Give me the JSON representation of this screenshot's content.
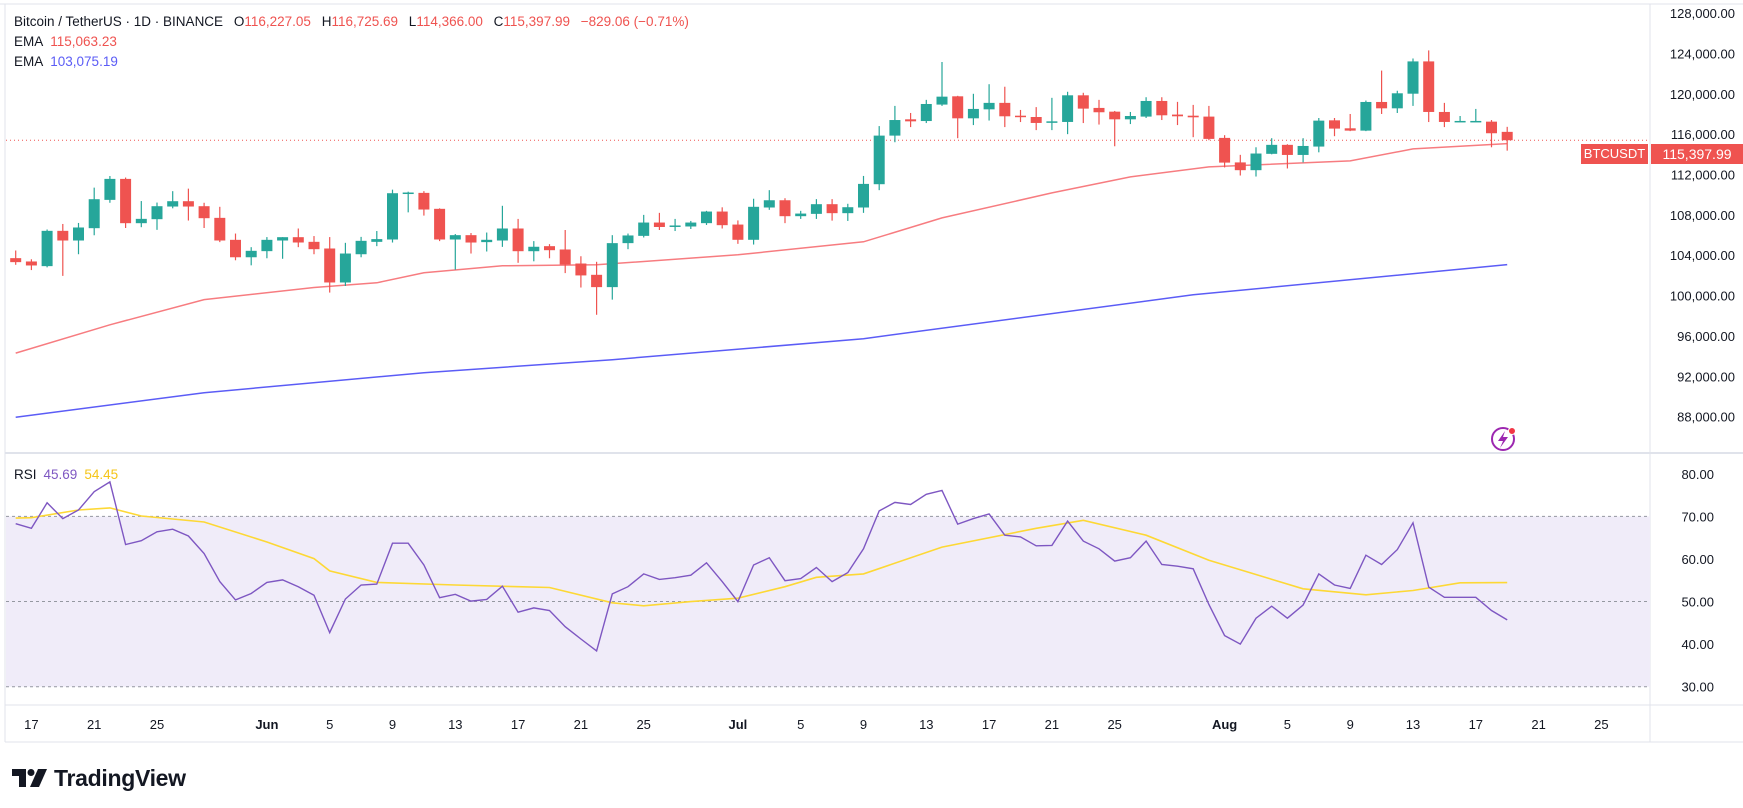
{
  "header": {
    "symbol": "Bitcoin / TetherUS · 1D · BINANCE",
    "o_label": "O",
    "o": "116,227.05",
    "h_label": "H",
    "h": "116,725.69",
    "l_label": "L",
    "l": "114,366.00",
    "c_label": "C",
    "c": "115,397.99",
    "change": "−829.06 (−0.71%)"
  },
  "indicators": [
    {
      "name": "EMA",
      "value": "115,063.23",
      "color": "#f77c80"
    },
    {
      "name": "EMA",
      "value": "103,075.19",
      "color": "#5b5cf6"
    }
  ],
  "rsi_legend": {
    "name": "RSI",
    "value": "45.69",
    "ma_value": "54.45"
  },
  "price_label": {
    "symbol": "BTCUSDT",
    "value": "115,397.99"
  },
  "branding": "TradingView",
  "colors": {
    "up": "#26a69a",
    "down": "#ef5350",
    "ema_fast": "#f77c80",
    "ema_slow": "#5b5cf6",
    "rsi": "#7e57c2",
    "rsi_ma": "#fdd835",
    "rsi_band": "#f0ecf9",
    "alert_icon": "#9c27b0"
  },
  "alert_icon": "lightning-icon",
  "chart_data": {
    "type": "candlestick",
    "ylim": [
      84500,
      128800
    ],
    "grid": false,
    "y_ticks": [
      "128,000.00",
      "124,000.00",
      "120,000.00",
      "116,000.00",
      "112,000.00",
      "108,000.00",
      "104,000.00",
      "100,000.00",
      "96,000.00",
      "92,000.00",
      "88,000.00"
    ],
    "x_ticks": [
      {
        "label": "17",
        "date": "May 17"
      },
      {
        "label": "21",
        "date": "May 21"
      },
      {
        "label": "25",
        "date": "May 25"
      },
      {
        "label": "Jun",
        "date": "Jun 1"
      },
      {
        "label": "5",
        "date": "Jun 5"
      },
      {
        "label": "9",
        "date": "Jun 9"
      },
      {
        "label": "13",
        "date": "Jun 13"
      },
      {
        "label": "17",
        "date": "Jun 17"
      },
      {
        "label": "21",
        "date": "Jun 21"
      },
      {
        "label": "25",
        "date": "Jun 25"
      },
      {
        "label": "Jul",
        "date": "Jul 1"
      },
      {
        "label": "5",
        "date": "Jul 5"
      },
      {
        "label": "9",
        "date": "Jul 9"
      },
      {
        "label": "13",
        "date": "Jul 13"
      },
      {
        "label": "17",
        "date": "Jul 17"
      },
      {
        "label": "21",
        "date": "Jul 21"
      },
      {
        "label": "25",
        "date": "Jul 25"
      },
      {
        "label": "Aug",
        "date": "Aug 1"
      },
      {
        "label": "5",
        "date": "Aug 5"
      },
      {
        "label": "9",
        "date": "Aug 9"
      },
      {
        "label": "13",
        "date": "Aug 13"
      },
      {
        "label": "17",
        "date": "Aug 17"
      },
      {
        "label": "21",
        "date": "Aug 21"
      },
      {
        "label": "25",
        "date": "Aug 25"
      }
    ],
    "candles_columns": [
      "date",
      "open",
      "high",
      "low",
      "close"
    ],
    "candles": [
      [
        "May 16",
        103712,
        104471,
        103052,
        103316
      ],
      [
        "May 17",
        103382,
        103600,
        102530,
        102986
      ],
      [
        "May 18",
        102920,
        106550,
        102800,
        106418
      ],
      [
        "May 19",
        106418,
        107100,
        101954,
        105460
      ],
      [
        "May 20",
        105460,
        107200,
        104100,
        106750
      ],
      [
        "May 21",
        106682,
        110700,
        105980,
        109553
      ],
      [
        "May 22",
        109487,
        111850,
        109200,
        111566
      ],
      [
        "May 23",
        111566,
        111700,
        106700,
        107177
      ],
      [
        "May 24",
        107177,
        109370,
        106780,
        107606
      ],
      [
        "May 25",
        107573,
        109220,
        106517,
        108860
      ],
      [
        "May 26",
        108827,
        110350,
        108650,
        109355
      ],
      [
        "May 27",
        109355,
        110600,
        107440,
        108827
      ],
      [
        "May 28",
        108860,
        109200,
        106700,
        107672
      ],
      [
        "May 29",
        107705,
        108800,
        105300,
        105460
      ],
      [
        "May 30",
        105526,
        106150,
        103500,
        103800
      ],
      [
        "May 31",
        103800,
        104800,
        103000,
        104438
      ],
      [
        "Jun 1",
        104405,
        105800,
        103700,
        105526
      ],
      [
        "Jun 2",
        105460,
        105790,
        103650,
        105790
      ],
      [
        "Jun 3",
        105790,
        106650,
        104800,
        105262
      ],
      [
        "Jun 4",
        105328,
        105900,
        104100,
        104600
      ],
      [
        "Jun 5",
        104668,
        105800,
        100300,
        101300
      ],
      [
        "Jun 6",
        101300,
        105230,
        100950,
        104170
      ],
      [
        "Jun 7",
        104100,
        105820,
        103800,
        105427
      ],
      [
        "Jun 8",
        105327,
        106400,
        104900,
        105600
      ],
      [
        "Jun 9",
        105560,
        110500,
        105260,
        110147
      ],
      [
        "Jun 10",
        110080,
        110300,
        108250,
        110215
      ],
      [
        "Jun 11",
        110180,
        110350,
        107930,
        108530
      ],
      [
        "Jun 12",
        108600,
        108650,
        105400,
        105560
      ],
      [
        "Jun 13",
        105560,
        106100,
        102570,
        105990
      ],
      [
        "Jun 14",
        105990,
        106200,
        104170,
        105260
      ],
      [
        "Jun 15",
        105300,
        106250,
        104370,
        105530
      ],
      [
        "Jun 16",
        105460,
        108900,
        104830,
        106650
      ],
      [
        "Jun 17",
        106650,
        107600,
        103250,
        104400
      ],
      [
        "Jun 18",
        104400,
        105400,
        103400,
        104840
      ],
      [
        "Jun 19",
        104900,
        105100,
        103700,
        104500
      ],
      [
        "Jun 20",
        104570,
        106500,
        102230,
        103080
      ],
      [
        "Jun 21",
        103180,
        103900,
        100800,
        102000
      ],
      [
        "Jun 22",
        102060,
        103350,
        98100,
        100840
      ],
      [
        "Jun 23",
        100840,
        105990,
        99600,
        105200
      ],
      [
        "Jun 24",
        105200,
        106150,
        104600,
        105960
      ],
      [
        "Jun 25",
        105920,
        108000,
        105760,
        107240
      ],
      [
        "Jun 26",
        107240,
        108200,
        106500,
        106800
      ],
      [
        "Jun 27",
        106850,
        107600,
        106400,
        106950
      ],
      [
        "Jun 28",
        106850,
        107400,
        106600,
        107240
      ],
      [
        "Jun 29",
        107180,
        108400,
        107000,
        108330
      ],
      [
        "Jun 30",
        108330,
        108750,
        106650,
        106980
      ],
      [
        "Jul 1",
        107040,
        107450,
        105130,
        105530
      ],
      [
        "Jul 2",
        105530,
        109600,
        105060,
        108800
      ],
      [
        "Jul 3",
        108730,
        110450,
        108500,
        109450
      ],
      [
        "Jul 4",
        109450,
        109650,
        107180,
        107870
      ],
      [
        "Jul 5",
        107870,
        108400,
        107600,
        108130
      ],
      [
        "Jul 6",
        108100,
        109560,
        107600,
        109060
      ],
      [
        "Jul 7",
        109060,
        109560,
        107430,
        108170
      ],
      [
        "Jul 8",
        108170,
        109100,
        107400,
        108760
      ],
      [
        "Jul 9",
        108730,
        111860,
        108200,
        111070
      ],
      [
        "Jul 10",
        111040,
        116800,
        110450,
        115856
      ],
      [
        "Jul 11",
        115856,
        118800,
        115200,
        117400
      ],
      [
        "Jul 12",
        117470,
        118100,
        116700,
        117270
      ],
      [
        "Jul 13",
        117300,
        119400,
        117100,
        118990
      ],
      [
        "Jul 14",
        118930,
        123150,
        118800,
        119717
      ],
      [
        "Jul 15",
        119750,
        119800,
        115600,
        117570
      ],
      [
        "Jul 16",
        117570,
        120000,
        116900,
        118500
      ],
      [
        "Jul 17",
        118460,
        120950,
        117350,
        119100
      ],
      [
        "Jul 18",
        119100,
        120700,
        116700,
        117770
      ],
      [
        "Jul 19",
        117830,
        118400,
        117200,
        117740
      ],
      [
        "Jul 20",
        117700,
        118680,
        116400,
        117110
      ],
      [
        "Jul 21",
        117140,
        119600,
        116400,
        117270
      ],
      [
        "Jul 22",
        117210,
        120200,
        116000,
        119850
      ],
      [
        "Jul 23",
        119850,
        120100,
        117100,
        118530
      ],
      [
        "Jul 24",
        118600,
        119400,
        116950,
        118170
      ],
      [
        "Jul 25",
        118230,
        118300,
        114800,
        117470
      ],
      [
        "Jul 26",
        117470,
        118200,
        117000,
        117800
      ],
      [
        "Jul 27",
        117740,
        119660,
        117600,
        119290
      ],
      [
        "Jul 28",
        119290,
        119660,
        117400,
        117870
      ],
      [
        "Jul 29",
        117940,
        119200,
        116900,
        117770
      ],
      [
        "Jul 30",
        117830,
        118900,
        115700,
        117670
      ],
      [
        "Jul 31",
        117740,
        118800,
        115400,
        115530
      ],
      [
        "Aug 1",
        115630,
        115900,
        112700,
        113180
      ],
      [
        "Aug 2",
        113200,
        113950,
        111900,
        112430
      ],
      [
        "Aug 3",
        112430,
        114700,
        111800,
        114080
      ],
      [
        "Aug 4",
        114050,
        115600,
        114000,
        114940
      ],
      [
        "Aug 5",
        114940,
        115000,
        112600,
        113940
      ],
      [
        "Aug 6",
        113940,
        115600,
        113200,
        114830
      ],
      [
        "Aug 7",
        114770,
        117600,
        114200,
        117340
      ],
      [
        "Aug 8",
        117370,
        117600,
        115800,
        116550
      ],
      [
        "Aug 9",
        116580,
        118000,
        116300,
        116350
      ],
      [
        "Aug 10",
        116350,
        119330,
        116300,
        119190
      ],
      [
        "Aug 11",
        119190,
        122300,
        118000,
        118560
      ],
      [
        "Aug 12",
        118560,
        120300,
        118100,
        120050
      ],
      [
        "Aug 13",
        120010,
        123500,
        118800,
        123210
      ],
      [
        "Aug 14",
        123210,
        124300,
        117200,
        118200
      ],
      [
        "Aug 15",
        118200,
        119100,
        116700,
        117210
      ],
      [
        "Aug 16",
        117210,
        117800,
        117200,
        117310
      ],
      [
        "Aug 17",
        117210,
        118500,
        117200,
        117310
      ],
      [
        "Aug 18",
        117240,
        117400,
        114700,
        116090
      ],
      [
        "Aug 19",
        116227.05,
        116725.69,
        114366.0,
        115397.99
      ]
    ],
    "last_price": 115397.99,
    "ema_fast": [
      [
        "May 16",
        94300
      ],
      [
        "May 22",
        97110
      ],
      [
        "May 28",
        99600
      ],
      [
        "Jun 4",
        100800
      ],
      [
        "Jun 8",
        101270
      ],
      [
        "Jun 11",
        102260
      ],
      [
        "Jun 16",
        102950
      ],
      [
        "Jun 22",
        103050
      ],
      [
        "Jul 1",
        104040
      ],
      [
        "Jul 9",
        105330
      ],
      [
        "Jul 14",
        107700
      ],
      [
        "Jul 21",
        110180
      ],
      [
        "Jul 26",
        111760
      ],
      [
        "Jul 31",
        112750
      ],
      [
        "Aug 9",
        113350
      ],
      [
        "Aug 13",
        114540
      ],
      [
        "Aug 19",
        115063.23
      ]
    ],
    "ema_slow": [
      [
        "May 16",
        87950
      ],
      [
        "May 28",
        90380
      ],
      [
        "Jun 11",
        92360
      ],
      [
        "Jun 23",
        93650
      ],
      [
        "Jul 9",
        95730
      ],
      [
        "Jul 30",
        100080
      ],
      [
        "Aug 19",
        103075.19
      ]
    ],
    "rsi": {
      "ylim": [
        25.7,
        84.9
      ],
      "levels": [
        30,
        50,
        70
      ],
      "ticks": [
        "80.00",
        "70.00",
        "60.00",
        "50.00",
        "40.00",
        "30.00"
      ],
      "values": [
        68.3,
        67.2,
        73.2,
        69.5,
        71.5,
        75.8,
        78.1,
        63.4,
        64.3,
        66.4,
        67.0,
        65.4,
        61.3,
        54.7,
        50.4,
        51.9,
        54.5,
        55.1,
        53.5,
        51.5,
        42.7,
        50.6,
        53.9,
        54.1,
        63.7,
        63.7,
        58.6,
        50.9,
        51.7,
        50.1,
        50.5,
        53.6,
        47.5,
        48.5,
        47.9,
        44.1,
        41.2,
        38.4,
        51.8,
        53.5,
        56.5,
        55.2,
        55.6,
        56.2,
        59.1,
        54.7,
        50.0,
        58.6,
        60.3,
        54.9,
        55.4,
        58.0,
        54.7,
        56.8,
        62.4,
        71.3,
        73.3,
        72.8,
        75.2,
        76.1,
        68.2,
        69.5,
        70.6,
        65.6,
        65.2,
        63.1,
        63.2,
        68.9,
        64.2,
        62.4,
        59.5,
        60.3,
        64.2,
        58.7,
        58.3,
        57.7,
        49.3,
        42.0,
        40.0,
        46.1,
        48.9,
        46.1,
        49.2,
        56.5,
        53.9,
        53.1,
        60.9,
        58.7,
        62.2,
        68.5,
        53.4,
        51.0,
        51.0,
        51.0,
        47.9,
        45.69
      ],
      "ma": [
        [
          "May 16",
          69.6
        ],
        [
          "May 17",
          69.7
        ],
        [
          "May 20",
          71.5
        ],
        [
          "May 22",
          72.0
        ],
        [
          "May 24",
          70.1
        ],
        [
          "May 28",
          68.7
        ],
        [
          "Jun 1",
          64.0
        ],
        [
          "Jun 4",
          60.1
        ],
        [
          "Jun 5",
          57.2
        ],
        [
          "Jun 8",
          54.5
        ],
        [
          "Jun 13",
          53.9
        ],
        [
          "Jun 17",
          53.5
        ],
        [
          "Jun 19",
          53.3
        ],
        [
          "Jun 23",
          49.7
        ],
        [
          "Jun 25",
          49.0
        ],
        [
          "Jun 28",
          50.0
        ],
        [
          "Jul 1",
          50.8
        ],
        [
          "Jul 4",
          53.5
        ],
        [
          "Jul 6",
          55.7
        ],
        [
          "Jul 9",
          56.5
        ],
        [
          "Jul 14",
          62.8
        ],
        [
          "Jul 20",
          67.2
        ],
        [
          "Jul 23",
          69.1
        ],
        [
          "Jul 27",
          65.6
        ],
        [
          "Jul 31",
          59.7
        ],
        [
          "Aug 6",
          53.0
        ],
        [
          "Aug 10",
          51.6
        ],
        [
          "Aug 13",
          52.6
        ],
        [
          "Aug 16",
          54.4
        ],
        [
          "Aug 19",
          54.45
        ]
      ]
    }
  }
}
